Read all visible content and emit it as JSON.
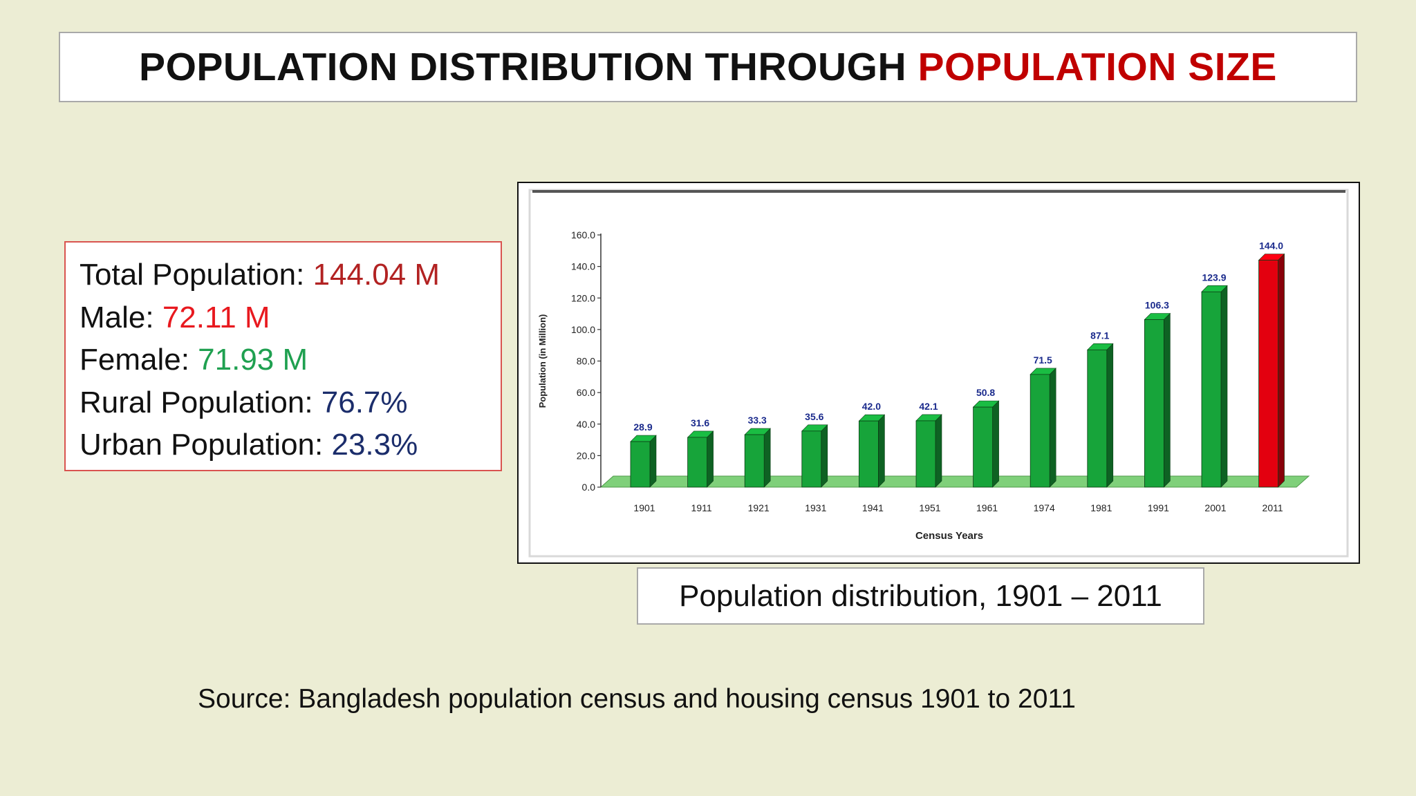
{
  "header": {
    "title_main": "POPULATION DISTRIBUTION THROUGH ",
    "title_accent": "POPULATION SIZE"
  },
  "stats": {
    "total_label": "Total Population: ",
    "total_value": "144.04 M",
    "male_label": "Male: ",
    "male_value": "72.11 M",
    "female_label": "Female: ",
    "female_value": "71.93 M",
    "rural_label": "Rural Population: ",
    "rural_value": "76.7%",
    "urban_label": "Urban Population: ",
    "urban_value": "23.3%"
  },
  "caption": "Population distribution, 1901 – 2011",
  "source": "Source: Bangladesh population census and housing census 1901 to 2011",
  "chart_data": {
    "type": "bar",
    "categories": [
      "1901",
      "1911",
      "1921",
      "1931",
      "1941",
      "1951",
      "1961",
      "1974",
      "1981",
      "1991",
      "2001",
      "2011"
    ],
    "values": [
      28.9,
      31.6,
      33.3,
      35.6,
      42.0,
      42.1,
      50.8,
      71.5,
      87.1,
      106.3,
      123.9,
      144.0
    ],
    "value_labels": [
      "28.9",
      "31.6",
      "33.3",
      "35.6",
      "42.0",
      "42.1",
      "50.8",
      "71.5",
      "87.1",
      "106.3",
      "123.9",
      "144.0"
    ],
    "title": "",
    "xlabel": "Census Years",
    "ylabel": "Population (in Million)",
    "ylim": [
      0,
      160
    ],
    "yticks": [
      "0.0",
      "20.0",
      "40.0",
      "60.0",
      "80.0",
      "100.0",
      "120.0",
      "140.0",
      "160.0"
    ],
    "grid": false,
    "colors": {
      "bar": "#17a43a",
      "bar_highlight": "#e3000f",
      "value_label": "#1a2a8c",
      "floor": "#7fd07a"
    },
    "highlight_category": "2011"
  }
}
